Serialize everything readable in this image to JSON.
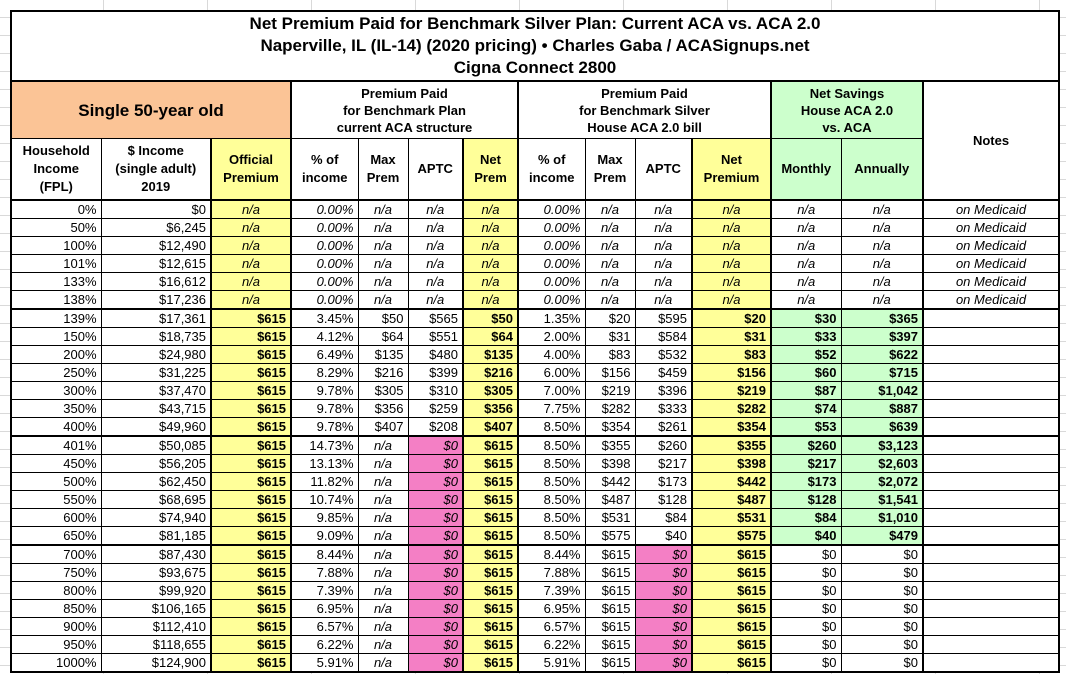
{
  "title": {
    "line1": "Net Premium Paid for Benchmark Silver Plan: Current ACA vs. ACA 2.0",
    "line2": "Naperville, IL (IL-14) (2020 pricing) • Charles Gaba / ACASignups.net",
    "line3": "Cigna Connect 2800"
  },
  "groups": {
    "demographic": "Single 50-year old",
    "current_aca": "Premium Paid\nfor Benchmark Plan\ncurrent ACA structure",
    "aca2": "Premium Paid\nfor Benchmark Silver\nHouse ACA 2.0 bill",
    "savings": "Net Savings\nHouse ACA 2.0\nvs. ACA",
    "notes": "Notes"
  },
  "columns": [
    "Household\nIncome\n(FPL)",
    "$ Income\n(single adult)\n2019",
    "Official\nPremium",
    "% of\nincome",
    "Max\nPrem",
    "APTC",
    "Net\nPrem",
    "% of\nincome",
    "Max\nPrem",
    "APTC",
    "Net\nPremium",
    "Monthly",
    "Annually"
  ],
  "colors": {
    "peach": "#FBC496",
    "yellow": "#FFFF99",
    "green": "#CCFFCC",
    "pink": "#F47FC5"
  },
  "rows": [
    [
      "0%",
      "$0",
      "n/a",
      "0.00%",
      "n/a",
      "n/a",
      "n/a",
      "0.00%",
      "n/a",
      "n/a",
      "n/a",
      "n/a",
      "n/a",
      "on Medicaid"
    ],
    [
      "50%",
      "$6,245",
      "n/a",
      "0.00%",
      "n/a",
      "n/a",
      "n/a",
      "0.00%",
      "n/a",
      "n/a",
      "n/a",
      "n/a",
      "n/a",
      "on Medicaid"
    ],
    [
      "100%",
      "$12,490",
      "n/a",
      "0.00%",
      "n/a",
      "n/a",
      "n/a",
      "0.00%",
      "n/a",
      "n/a",
      "n/a",
      "n/a",
      "n/a",
      "on Medicaid"
    ],
    [
      "101%",
      "$12,615",
      "n/a",
      "0.00%",
      "n/a",
      "n/a",
      "n/a",
      "0.00%",
      "n/a",
      "n/a",
      "n/a",
      "n/a",
      "n/a",
      "on Medicaid"
    ],
    [
      "133%",
      "$16,612",
      "n/a",
      "0.00%",
      "n/a",
      "n/a",
      "n/a",
      "0.00%",
      "n/a",
      "n/a",
      "n/a",
      "n/a",
      "n/a",
      "on Medicaid"
    ],
    [
      "138%",
      "$17,236",
      "n/a",
      "0.00%",
      "n/a",
      "n/a",
      "n/a",
      "0.00%",
      "n/a",
      "n/a",
      "n/a",
      "n/a",
      "n/a",
      "on Medicaid"
    ],
    [
      "139%",
      "$17,361",
      "$615",
      "3.45%",
      "$50",
      "$565",
      "$50",
      "1.35%",
      "$20",
      "$595",
      "$20",
      "$30",
      "$365",
      ""
    ],
    [
      "150%",
      "$18,735",
      "$615",
      "4.12%",
      "$64",
      "$551",
      "$64",
      "2.00%",
      "$31",
      "$584",
      "$31",
      "$33",
      "$397",
      ""
    ],
    [
      "200%",
      "$24,980",
      "$615",
      "6.49%",
      "$135",
      "$480",
      "$135",
      "4.00%",
      "$83",
      "$532",
      "$83",
      "$52",
      "$622",
      ""
    ],
    [
      "250%",
      "$31,225",
      "$615",
      "8.29%",
      "$216",
      "$399",
      "$216",
      "6.00%",
      "$156",
      "$459",
      "$156",
      "$60",
      "$715",
      ""
    ],
    [
      "300%",
      "$37,470",
      "$615",
      "9.78%",
      "$305",
      "$310",
      "$305",
      "7.00%",
      "$219",
      "$396",
      "$219",
      "$87",
      "$1,042",
      ""
    ],
    [
      "350%",
      "$43,715",
      "$615",
      "9.78%",
      "$356",
      "$259",
      "$356",
      "7.75%",
      "$282",
      "$333",
      "$282",
      "$74",
      "$887",
      ""
    ],
    [
      "400%",
      "$49,960",
      "$615",
      "9.78%",
      "$407",
      "$208",
      "$407",
      "8.50%",
      "$354",
      "$261",
      "$354",
      "$53",
      "$639",
      ""
    ],
    [
      "401%",
      "$50,085",
      "$615",
      "14.73%",
      "n/a",
      "$0",
      "$615",
      "8.50%",
      "$355",
      "$260",
      "$355",
      "$260",
      "$3,123",
      ""
    ],
    [
      "450%",
      "$56,205",
      "$615",
      "13.13%",
      "n/a",
      "$0",
      "$615",
      "8.50%",
      "$398",
      "$217",
      "$398",
      "$217",
      "$2,603",
      ""
    ],
    [
      "500%",
      "$62,450",
      "$615",
      "11.82%",
      "n/a",
      "$0",
      "$615",
      "8.50%",
      "$442",
      "$173",
      "$442",
      "$173",
      "$2,072",
      ""
    ],
    [
      "550%",
      "$68,695",
      "$615",
      "10.74%",
      "n/a",
      "$0",
      "$615",
      "8.50%",
      "$487",
      "$128",
      "$487",
      "$128",
      "$1,541",
      ""
    ],
    [
      "600%",
      "$74,940",
      "$615",
      "9.85%",
      "n/a",
      "$0",
      "$615",
      "8.50%",
      "$531",
      "$84",
      "$531",
      "$84",
      "$1,010",
      ""
    ],
    [
      "650%",
      "$81,185",
      "$615",
      "9.09%",
      "n/a",
      "$0",
      "$615",
      "8.50%",
      "$575",
      "$40",
      "$575",
      "$40",
      "$479",
      ""
    ],
    [
      "700%",
      "$87,430",
      "$615",
      "8.44%",
      "n/a",
      "$0",
      "$615",
      "8.44%",
      "$615",
      "$0",
      "$615",
      "$0",
      "$0",
      ""
    ],
    [
      "750%",
      "$93,675",
      "$615",
      "7.88%",
      "n/a",
      "$0",
      "$615",
      "7.88%",
      "$615",
      "$0",
      "$615",
      "$0",
      "$0",
      ""
    ],
    [
      "800%",
      "$99,920",
      "$615",
      "7.39%",
      "n/a",
      "$0",
      "$615",
      "7.39%",
      "$615",
      "$0",
      "$615",
      "$0",
      "$0",
      ""
    ],
    [
      "850%",
      "$106,165",
      "$615",
      "6.95%",
      "n/a",
      "$0",
      "$615",
      "6.95%",
      "$615",
      "$0",
      "$615",
      "$0",
      "$0",
      ""
    ],
    [
      "900%",
      "$112,410",
      "$615",
      "6.57%",
      "n/a",
      "$0",
      "$615",
      "6.57%",
      "$615",
      "$0",
      "$615",
      "$0",
      "$0",
      ""
    ],
    [
      "950%",
      "$118,655",
      "$615",
      "6.22%",
      "n/a",
      "$0",
      "$615",
      "6.22%",
      "$615",
      "$0",
      "$615",
      "$0",
      "$0",
      ""
    ],
    [
      "1000%",
      "$124,900",
      "$615",
      "5.91%",
      "n/a",
      "$0",
      "$615",
      "5.91%",
      "$615",
      "$0",
      "$615",
      "$0",
      "$0",
      ""
    ]
  ]
}
